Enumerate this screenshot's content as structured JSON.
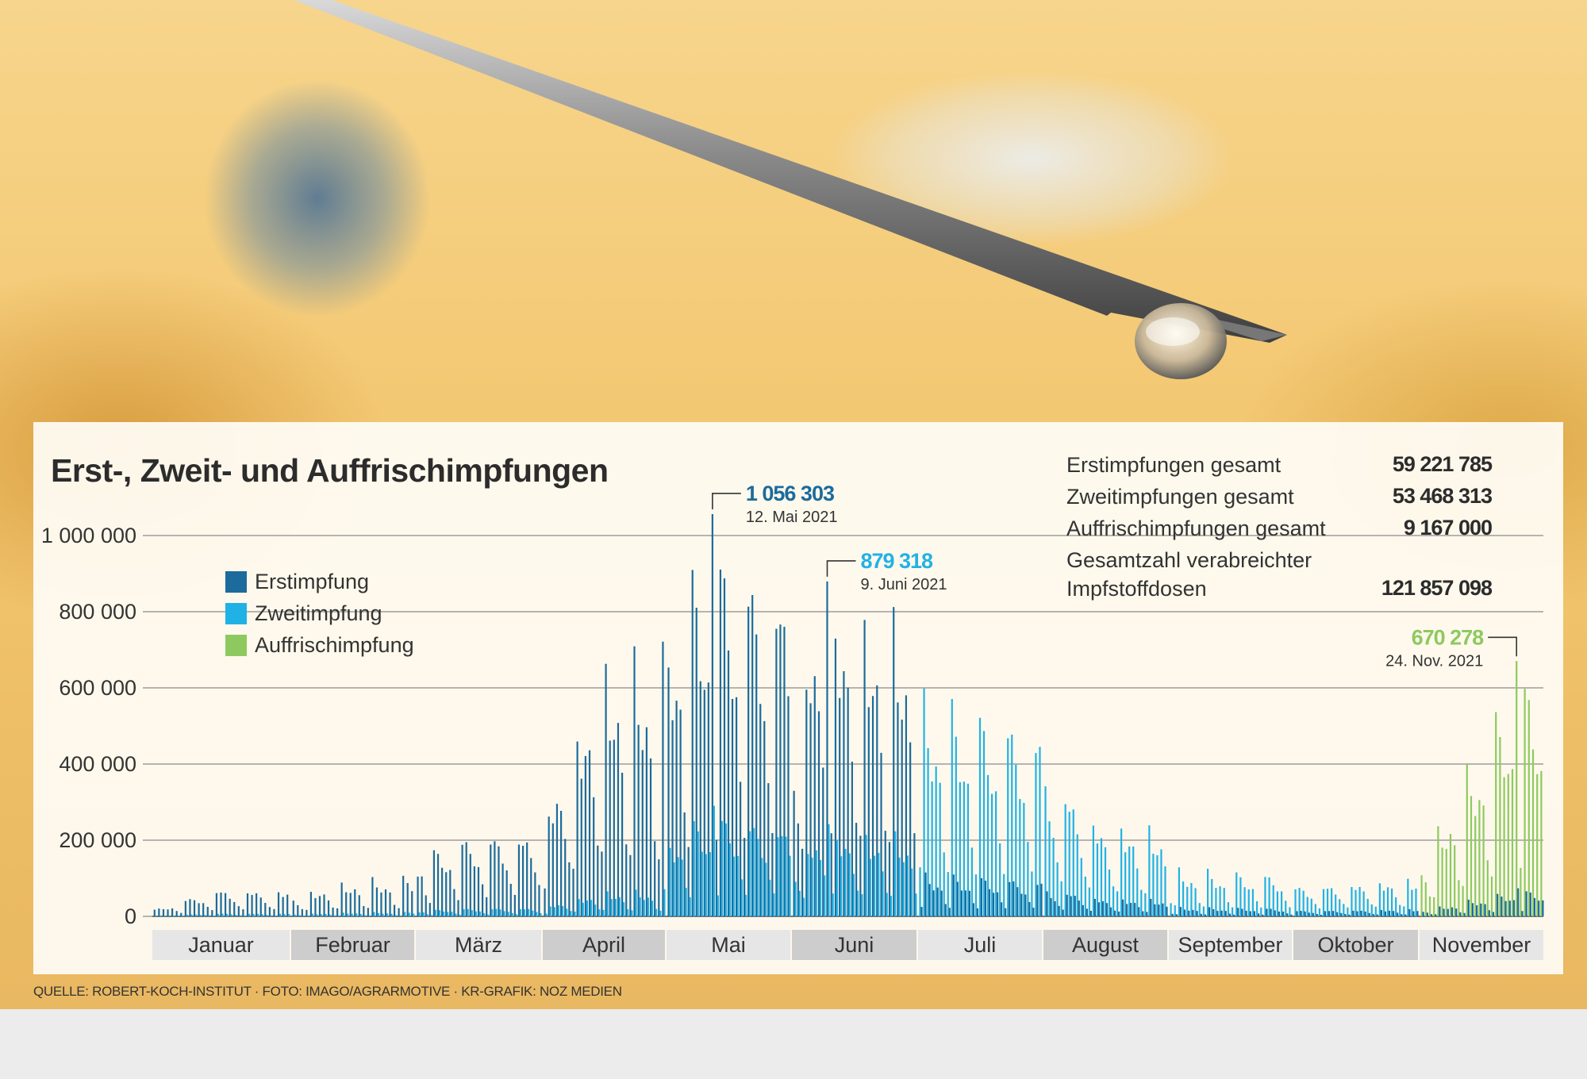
{
  "title": "Erst-, Zweit- und Auffrischimpfungen",
  "footer": "QUELLE: ROBERT-KOCH-INSTITUT · FOTO: IMAGO/AGRARMOTIVE · KR-GRAFIK: NOZ MEDIEN",
  "legend": [
    {
      "label": "Erstimpfung",
      "color": "#1c6b9c"
    },
    {
      "label": "Zweitimpfung",
      "color": "#21b2e5"
    },
    {
      "label": "Auffrischimpfung",
      "color": "#8ec960"
    }
  ],
  "stats": [
    {
      "label": "Erstimpfungen gesamt",
      "value": "59 221 785"
    },
    {
      "label": "Zweitimpfungen gesamt",
      "value": "53 468 313"
    },
    {
      "label": "Auffrischimpfungen gesamt",
      "value": "9 167 000"
    },
    {
      "label": "Gesamtzahl verabreichter\nImpfstoffdosen",
      "value": "121 857 098"
    }
  ],
  "chart_data": {
    "type": "bar",
    "title": "Erst-, Zweit- und Auffrischimpfungen",
    "ylim": [
      0,
      1150000
    ],
    "y_ticks": [
      0,
      200000,
      400000,
      600000,
      800000,
      1000000
    ],
    "y_tick_labels": [
      "0",
      "200 000",
      "400 000",
      "600 000",
      "800 000",
      "1 000 000"
    ],
    "grid": true,
    "legend_position": "top-left",
    "months": [
      "Januar",
      "Februar",
      "März",
      "April",
      "Mai",
      "Juni",
      "Juli",
      "August",
      "September",
      "Oktober",
      "November"
    ],
    "series_names": [
      "Erstimpfung",
      "Zweitimpfung",
      "Auffrischimpfung"
    ],
    "daily_total_key_points": [
      {
        "month": "Januar",
        "day": 1,
        "value": 20000
      },
      {
        "month": "Januar",
        "day": 15,
        "value": 80000
      },
      {
        "month": "Februar",
        "day": 1,
        "value": 60000
      },
      {
        "month": "Februar",
        "day": 15,
        "value": 100000
      },
      {
        "month": "März",
        "day": 1,
        "value": 170000
      },
      {
        "month": "März",
        "day": 15,
        "value": 240000
      },
      {
        "month": "April",
        "day": 1,
        "value": 300000
      },
      {
        "month": "April",
        "day": 15,
        "value": 700000
      },
      {
        "month": "Mai",
        "day": 1,
        "value": 850000
      },
      {
        "month": "Mai",
        "day": 12,
        "value": 1056303
      },
      {
        "month": "Juni",
        "day": 1,
        "value": 700000
      },
      {
        "month": "Juni",
        "day": 9,
        "value": 879318
      },
      {
        "month": "Juli",
        "day": 1,
        "value": 600000
      },
      {
        "month": "August",
        "day": 1,
        "value": 450000
      },
      {
        "month": "August",
        "day": 15,
        "value": 270000
      },
      {
        "month": "September",
        "day": 1,
        "value": 130000
      },
      {
        "month": "Oktober",
        "day": 1,
        "value": 90000
      },
      {
        "month": "November",
        "day": 1,
        "value": 150000
      },
      {
        "month": "November",
        "day": 24,
        "value": 670278
      }
    ],
    "annotations": [
      {
        "value_label": "1 056 303",
        "date_label": "12. Mai 2021",
        "month": "Mai",
        "day": 12,
        "value": 1056303,
        "color": "#1c6b9c"
      },
      {
        "value_label": "879 318",
        "date_label": "9. Juni 2021",
        "month": "Juni",
        "day": 9,
        "value": 879318,
        "color": "#21b2e5"
      },
      {
        "value_label": "670 278",
        "date_label": "24. Nov. 2021",
        "month": "November",
        "day": 24,
        "value": 670278,
        "color": "#8ec960"
      }
    ]
  }
}
